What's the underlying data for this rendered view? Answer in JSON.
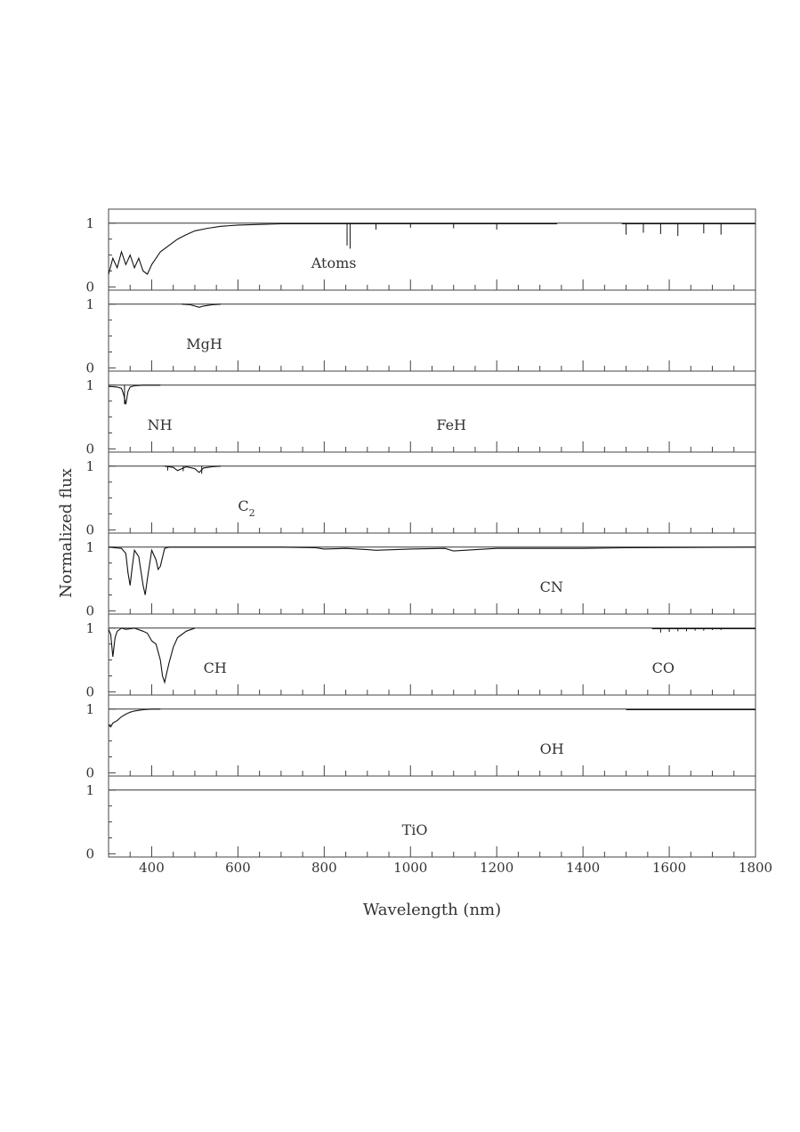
{
  "chart_data": {
    "type": "line",
    "xlabel": "Wavelength (nm)",
    "ylabel": "Normalized flux",
    "xlim": [
      300,
      1800
    ],
    "x_ticks": [
      "400",
      "600",
      "800",
      "1000",
      "1200",
      "1400",
      "1600",
      "1800"
    ],
    "y_ticks": [
      "0",
      "1"
    ],
    "ylim": [
      -0.05,
      1.22
    ],
    "grid": false,
    "panels": [
      {
        "label": "Atoms",
        "segments": [
          {
            "x": [
              300,
              310,
              320,
              330,
              340,
              350,
              360,
              370,
              380,
              390,
              400,
              420,
              440,
              460,
              480,
              500,
              530,
              560,
              600,
              650,
              700,
              1340
            ],
            "y": [
              0.2,
              0.45,
              0.3,
              0.55,
              0.35,
              0.5,
              0.3,
              0.45,
              0.25,
              0.2,
              0.35,
              0.55,
              0.65,
              0.75,
              0.82,
              0.88,
              0.92,
              0.95,
              0.97,
              0.98,
              0.99,
              0.99
            ]
          },
          {
            "x": [
              1490,
              1800
            ],
            "y": [
              0.99,
              0.99
            ]
          }
        ],
        "dips": [
          [
            860,
            0.6
          ],
          [
            853,
            0.65
          ],
          [
            920,
            0.9
          ],
          [
            1000,
            0.93
          ],
          [
            1100,
            0.92
          ],
          [
            1200,
            0.9
          ],
          [
            1500,
            0.82
          ],
          [
            1540,
            0.85
          ],
          [
            1580,
            0.83
          ],
          [
            1620,
            0.8
          ],
          [
            1680,
            0.84
          ],
          [
            1720,
            0.82
          ]
        ]
      },
      {
        "label": "MgH",
        "segments": [
          {
            "x": [
              470,
              490,
              500,
              510,
              520,
              540,
              560
            ],
            "y": [
              1.0,
              0.99,
              0.97,
              0.95,
              0.97,
              0.99,
              1.0
            ]
          }
        ],
        "dips": []
      },
      {
        "label": "NH",
        "label2": "FeH",
        "segments": [
          {
            "x": [
              300,
              320,
              330,
              335,
              340,
              345,
              350,
              360,
              380,
              420
            ],
            "y": [
              0.98,
              0.97,
              0.95,
              0.85,
              0.7,
              0.9,
              0.97,
              0.99,
              1.0,
              1.0
            ]
          }
        ],
        "dips": [
          [
            337,
            0.7
          ]
        ]
      },
      {
        "label": "C",
        "label_sub": "2",
        "segments": [
          {
            "x": [
              430,
              450,
              460,
              470,
              480,
              500,
              510,
              520,
              540,
              560
            ],
            "y": [
              1.0,
              0.98,
              0.93,
              0.96,
              0.99,
              0.96,
              0.9,
              0.97,
              0.99,
              1.0
            ]
          }
        ],
        "dips": [
          [
            437,
            0.93
          ],
          [
            473,
            0.92
          ],
          [
            516,
            0.88
          ]
        ]
      },
      {
        "label": "CN",
        "segments": [
          {
            "x": [
              300,
              330,
              340,
              345,
              350,
              355,
              360,
              370,
              380,
              385,
              390,
              400,
              410,
              415,
              420,
              430,
              440,
              700,
              780,
              800,
              850,
              900,
              920,
              1000,
              1080,
              1100,
              1200,
              1400,
              1500,
              1800
            ],
            "y": [
              1.0,
              0.98,
              0.9,
              0.6,
              0.4,
              0.7,
              0.95,
              0.85,
              0.4,
              0.25,
              0.5,
              0.95,
              0.8,
              0.65,
              0.7,
              0.98,
              1.0,
              1.0,
              0.99,
              0.97,
              0.98,
              0.96,
              0.95,
              0.97,
              0.98,
              0.94,
              0.98,
              0.98,
              0.99,
              1.0
            ]
          }
        ],
        "dips": []
      },
      {
        "label": "CH",
        "label2": "CO",
        "segments": [
          {
            "x": [
              300,
              305,
              310,
              315,
              320,
              330,
              340,
              360,
              380,
              390,
              400,
              410,
              420,
              425,
              430,
              435,
              440,
              450,
              460,
              480,
              500
            ],
            "y": [
              0.98,
              0.9,
              0.55,
              0.85,
              0.95,
              1.0,
              0.98,
              1.0,
              0.95,
              0.92,
              0.8,
              0.75,
              0.5,
              0.25,
              0.15,
              0.3,
              0.45,
              0.7,
              0.85,
              0.95,
              1.0
            ]
          },
          {
            "x": [
              1560,
              1800
            ],
            "y": [
              0.99,
              0.99
            ]
          }
        ],
        "dips": [
          [
            1580,
            0.93
          ],
          [
            1600,
            0.94
          ],
          [
            1620,
            0.95
          ],
          [
            1640,
            0.95
          ],
          [
            1660,
            0.96
          ],
          [
            1680,
            0.96
          ],
          [
            1700,
            0.97
          ],
          [
            1720,
            0.97
          ]
        ]
      },
      {
        "label": "OH",
        "segments": [
          {
            "x": [
              300,
              305,
              310,
              320,
              330,
              340,
              350,
              360,
              380,
              400,
              420
            ],
            "y": [
              0.75,
              0.72,
              0.78,
              0.82,
              0.88,
              0.92,
              0.95,
              0.97,
              0.99,
              1.0,
              1.0
            ]
          },
          {
            "x": [
              1500,
              1800
            ],
            "y": [
              0.99,
              0.99
            ]
          }
        ],
        "dips": []
      },
      {
        "label": "TiO",
        "segments": [],
        "dips": []
      }
    ]
  }
}
